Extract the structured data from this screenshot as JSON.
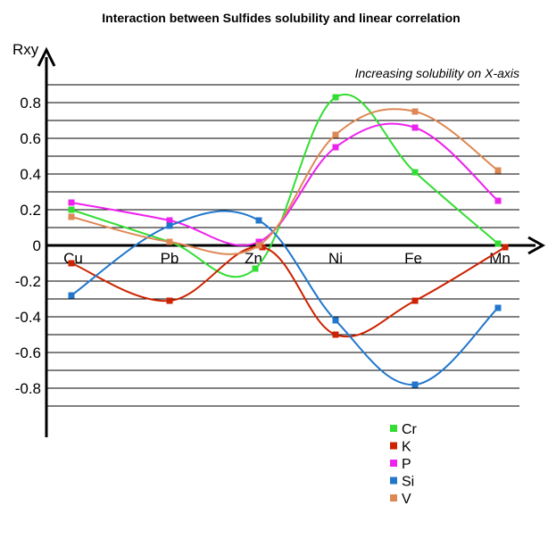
{
  "chart_data": {
    "type": "line",
    "title": "Interaction between Sulfides solubility and linear correlation",
    "ylabel": "Rxy",
    "annotation": "Increasing solubility on  X-axis",
    "categories": [
      "Cu",
      "Pb",
      "Zn",
      "Ni",
      "Fe",
      "Mn"
    ],
    "y_ticks": [
      "0.8",
      "0.6",
      "0.4",
      "0.2",
      "0",
      "-0.2",
      "-0.4",
      "-0.6",
      "-0.8"
    ],
    "ylim": [
      -1.0,
      0.9
    ],
    "grid": true,
    "legend": "bottom-right",
    "series": [
      {
        "name": "Cr",
        "color": "#33dd33",
        "values": [
          0.2,
          0.02,
          -0.13,
          0.83,
          0.41,
          0.01
        ]
      },
      {
        "name": "K",
        "color": "#cc2200",
        "values": [
          -0.1,
          -0.31,
          -0.01,
          -0.5,
          -0.31,
          -0.01
        ]
      },
      {
        "name": "P",
        "color": "#ee22ee",
        "values": [
          0.24,
          0.14,
          0.02,
          0.55,
          0.66,
          0.25
        ]
      },
      {
        "name": "Si",
        "color": "#2277cc",
        "values": [
          -0.28,
          0.11,
          0.14,
          -0.42,
          -0.78,
          -0.35
        ]
      },
      {
        "name": "V",
        "color": "#dd8855",
        "values": [
          0.16,
          0.02,
          0.0,
          0.62,
          0.75,
          0.42
        ]
      }
    ]
  }
}
